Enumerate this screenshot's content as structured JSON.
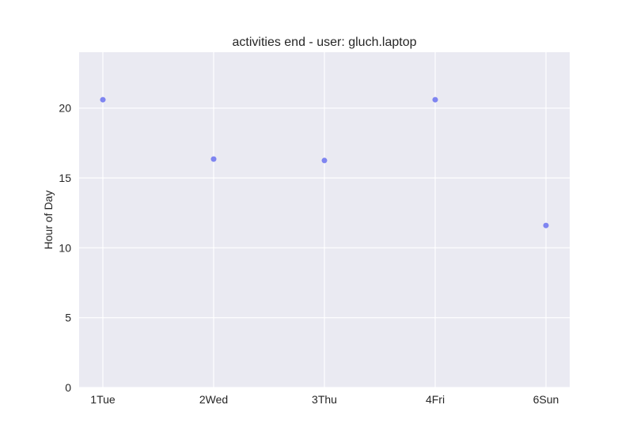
{
  "chart_data": {
    "type": "scatter",
    "title": "activities end - user: gluch.laptop",
    "xlabel": "",
    "ylabel": "Hour of Day",
    "categories": [
      "1Tue",
      "2Wed",
      "3Thu",
      "4Fri",
      "6Sun"
    ],
    "y_ticks": [
      "0",
      "5",
      "10",
      "15",
      "20"
    ],
    "ylim": [
      0,
      24
    ],
    "grid": true,
    "series": [
      {
        "values": [
          20.6,
          16.35,
          16.25,
          20.6,
          11.6
        ],
        "color": "#6b72f0"
      }
    ],
    "background": "#eaeaf2",
    "grid_color": "#ffffff"
  }
}
